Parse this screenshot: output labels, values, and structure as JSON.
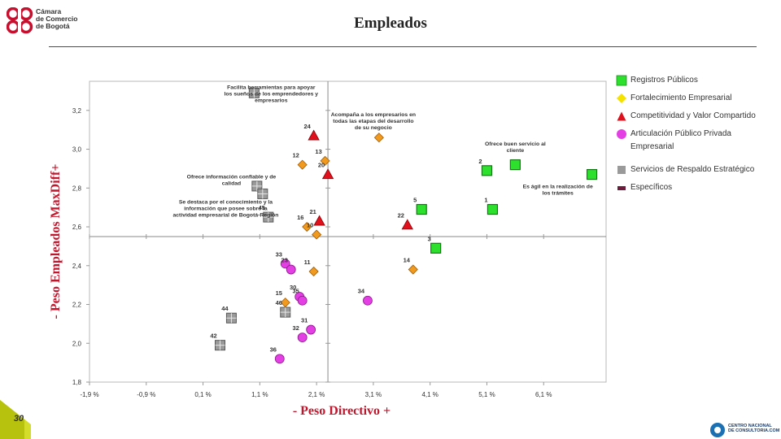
{
  "header": {
    "org_line1": "Cámara",
    "org_line2": "de Comercio",
    "org_line3": "de Bogotá",
    "title": "Empleados"
  },
  "legend": [
    {
      "label": "Registros Públicos",
      "shape": "square",
      "color": "#2ee02e"
    },
    {
      "label": "Fortalecimiento Empresarial",
      "shape": "diamond",
      "color": "#f6e200"
    },
    {
      "label": "Competitividad y Valor Compartido",
      "shape": "triangle",
      "color": "#e0101c"
    },
    {
      "label": "Articulación Público Privada",
      "label_line2": "Empresarial",
      "shape": "circle",
      "color": "#e43fe4"
    },
    {
      "label": "Servicios de Respaldo Estratégico",
      "shape": "square",
      "color": "#9a9a9a"
    },
    {
      "label": "Específicos",
      "shape": "rect",
      "color": "#6e1a3a"
    }
  ],
  "footer": {
    "page_number": "30",
    "brand_line1": "CENTRO NACIONAL",
    "brand_line2": "DE CONSULTORIA.COM"
  },
  "chart_data": {
    "type": "scatter",
    "title": "Empleados",
    "xlabel": "- Peso Directivo +",
    "ylabel": "- Peso Empleados MaxDiff+",
    "xlim": [
      -1.9,
      7.2
    ],
    "ylim": [
      1.8,
      3.35
    ],
    "x_ticks": [
      -1.9,
      -0.9,
      0.1,
      1.1,
      2.1,
      3.1,
      4.1,
      5.1,
      6.1
    ],
    "x_tick_labels": [
      "-1,9 %",
      "-0,9 %",
      "0,1 %",
      "1,1 %",
      "2,1 %",
      "3,1 %",
      "4,1 %",
      "5,1 %",
      "6,1 %"
    ],
    "y_ticks": [
      1.8,
      2.0,
      2.2,
      2.4,
      2.6,
      2.8,
      3.0,
      3.2
    ],
    "y_tick_labels": [
      "1,8",
      "2,0",
      "2,2",
      "2,4",
      "2,6",
      "2,8",
      "3,0",
      "3,2"
    ],
    "reference_lines": {
      "x": 2.3,
      "y": 2.55
    },
    "grid": false,
    "legend_position": "right",
    "series": [
      {
        "name": "Registros Públicos",
        "points": [
          {
            "x": 5.1,
            "y": 2.89,
            "label": "2"
          },
          {
            "x": 5.6,
            "y": 2.92,
            "label": ""
          },
          {
            "x": 6.95,
            "y": 2.87,
            "label": ""
          },
          {
            "x": 5.2,
            "y": 2.69,
            "label": "1"
          },
          {
            "x": 3.95,
            "y": 2.69,
            "label": "5"
          },
          {
            "x": 4.2,
            "y": 2.49,
            "label": "3"
          }
        ]
      },
      {
        "name": "Fortalecimiento Empresarial",
        "points": [
          {
            "x": 3.2,
            "y": 3.06,
            "label": ""
          },
          {
            "x": 2.25,
            "y": 2.94,
            "label": "13"
          },
          {
            "x": 1.85,
            "y": 2.92,
            "label": "12"
          },
          {
            "x": 1.93,
            "y": 2.6,
            "label": "16"
          },
          {
            "x": 2.1,
            "y": 2.56,
            "label": "10"
          },
          {
            "x": 2.05,
            "y": 2.37,
            "label": "11"
          },
          {
            "x": 3.8,
            "y": 2.38,
            "label": "14"
          },
          {
            "x": 1.55,
            "y": 2.21,
            "label": "15"
          }
        ]
      },
      {
        "name": "Competitividad y Valor Compartido",
        "points": [
          {
            "x": 2.05,
            "y": 3.07,
            "label": "24"
          },
          {
            "x": 2.3,
            "y": 2.87,
            "label": "20"
          },
          {
            "x": 2.15,
            "y": 2.63,
            "label": "21"
          },
          {
            "x": 3.7,
            "y": 2.61,
            "label": "22"
          }
        ]
      },
      {
        "name": "Articulación Público Privada Empresarial",
        "points": [
          {
            "x": 1.55,
            "y": 2.41,
            "label": "33"
          },
          {
            "x": 1.65,
            "y": 2.38,
            "label": "23"
          },
          {
            "x": 1.8,
            "y": 2.24,
            "label": "30"
          },
          {
            "x": 1.85,
            "y": 2.22,
            "label": "35"
          },
          {
            "x": 3.0,
            "y": 2.22,
            "label": "34"
          },
          {
            "x": 2.0,
            "y": 2.07,
            "label": "31"
          },
          {
            "x": 1.85,
            "y": 2.03,
            "label": "32"
          },
          {
            "x": 1.45,
            "y": 1.92,
            "label": "36"
          }
        ]
      },
      {
        "name": "Servicios de Respaldo Estratégico",
        "points": [
          {
            "x": 1.0,
            "y": 3.29,
            "label": ""
          },
          {
            "x": 1.05,
            "y": 2.81,
            "label": ""
          },
          {
            "x": 1.15,
            "y": 2.77,
            "label": ""
          },
          {
            "x": 1.25,
            "y": 2.65,
            "label": "45"
          },
          {
            "x": 1.55,
            "y": 2.16,
            "label": "46"
          },
          {
            "x": 0.6,
            "y": 2.13,
            "label": "44"
          },
          {
            "x": 0.4,
            "y": 1.99,
            "label": "42"
          }
        ]
      }
    ],
    "annotations": [
      {
        "text": "Facilita herramientas para apoyar los sueños de los emprendedores y empresarios",
        "x": 1.3,
        "y": 3.31
      },
      {
        "text": "Acompaña a los empresarios en todas las etapas del desarrollo de su negocio",
        "x": 3.1,
        "y": 3.17
      },
      {
        "text": "Ofrece información confiable y de calidad",
        "x": 0.6,
        "y": 2.85
      },
      {
        "text": "Se destaca por el conocimiento y la información que posee sobre la actividad empresarial de Bogotá-Región",
        "x": 0.5,
        "y": 2.72
      },
      {
        "text": "Ofrece buen servicio al cliente",
        "x": 5.6,
        "y": 3.02
      },
      {
        "text": "Es ágil en la realización de los trámites",
        "x": 6.35,
        "y": 2.8
      }
    ]
  }
}
